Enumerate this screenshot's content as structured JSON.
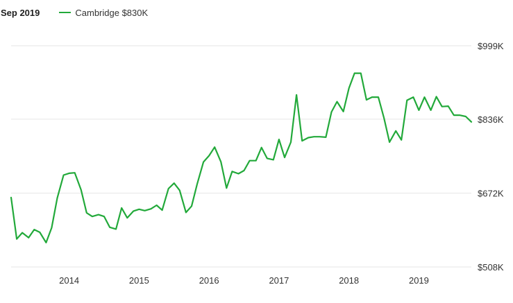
{
  "header": {
    "date_label": "Sep 2019",
    "legend_label": "Cambridge $830K"
  },
  "chart_data": {
    "type": "line",
    "title": "",
    "xlabel": "",
    "ylabel": "",
    "ylim": [
      508,
      999
    ],
    "y_ticks": [
      {
        "value": 999,
        "label": "$999K"
      },
      {
        "value": 836,
        "label": "$836K"
      },
      {
        "value": 672,
        "label": "$672K"
      },
      {
        "value": 508,
        "label": "$508K"
      }
    ],
    "x_ticks": [
      {
        "value": 2014.0,
        "label": "2014"
      },
      {
        "value": 2015.0,
        "label": "2015"
      },
      {
        "value": 2016.0,
        "label": "2016"
      },
      {
        "value": 2017.0,
        "label": "2017"
      },
      {
        "value": 2018.0,
        "label": "2018"
      },
      {
        "value": 2019.0,
        "label": "2019"
      }
    ],
    "xlim": [
      2013.17,
      2019.75
    ],
    "grid": true,
    "legend": "top-left",
    "colors": {
      "line": "#22a93a",
      "grid": "#e6e6e6",
      "text": "#333333"
    },
    "series": [
      {
        "name": "Cambridge",
        "color": "#22a93a",
        "x": [
          2013.17,
          2013.25,
          2013.33,
          2013.42,
          2013.5,
          2013.58,
          2013.67,
          2013.75,
          2013.83,
          2013.92,
          2014.0,
          2014.08,
          2014.17,
          2014.25,
          2014.33,
          2014.42,
          2014.5,
          2014.58,
          2014.67,
          2014.75,
          2014.83,
          2014.92,
          2015.0,
          2015.08,
          2015.17,
          2015.25,
          2015.33,
          2015.42,
          2015.5,
          2015.58,
          2015.67,
          2015.75,
          2015.83,
          2015.92,
          2016.0,
          2016.08,
          2016.17,
          2016.25,
          2016.33,
          2016.42,
          2016.5,
          2016.58,
          2016.67,
          2016.75,
          2016.83,
          2016.92,
          2017.0,
          2017.08,
          2017.17,
          2017.25,
          2017.33,
          2017.42,
          2017.5,
          2017.58,
          2017.67,
          2017.75,
          2017.83,
          2017.92,
          2018.0,
          2018.08,
          2018.17,
          2018.25,
          2018.33,
          2018.42,
          2018.5,
          2018.58,
          2018.67,
          2018.75,
          2018.83,
          2018.92,
          2019.0,
          2019.08,
          2019.17,
          2019.25,
          2019.33,
          2019.42,
          2019.5,
          2019.58,
          2019.67,
          2019.75
        ],
        "values": [
          662,
          570,
          584,
          573,
          591,
          585,
          562,
          595,
          661,
          712,
          716,
          717,
          679,
          628,
          620,
          624,
          620,
          596,
          592,
          639,
          617,
          632,
          636,
          633,
          637,
          645,
          634,
          682,
          694,
          678,
          629,
          643,
          692,
          741,
          755,
          774,
          741,
          683,
          720,
          715,
          722,
          744,
          744,
          773,
          749,
          746,
          791,
          751,
          785,
          890,
          788,
          795,
          797,
          797,
          796,
          852,
          875,
          853,
          905,
          938,
          938,
          879,
          885,
          885,
          839,
          785,
          810,
          790,
          878,
          885,
          856,
          885,
          856,
          886,
          864,
          865,
          845,
          845,
          842,
          830
        ]
      }
    ]
  }
}
